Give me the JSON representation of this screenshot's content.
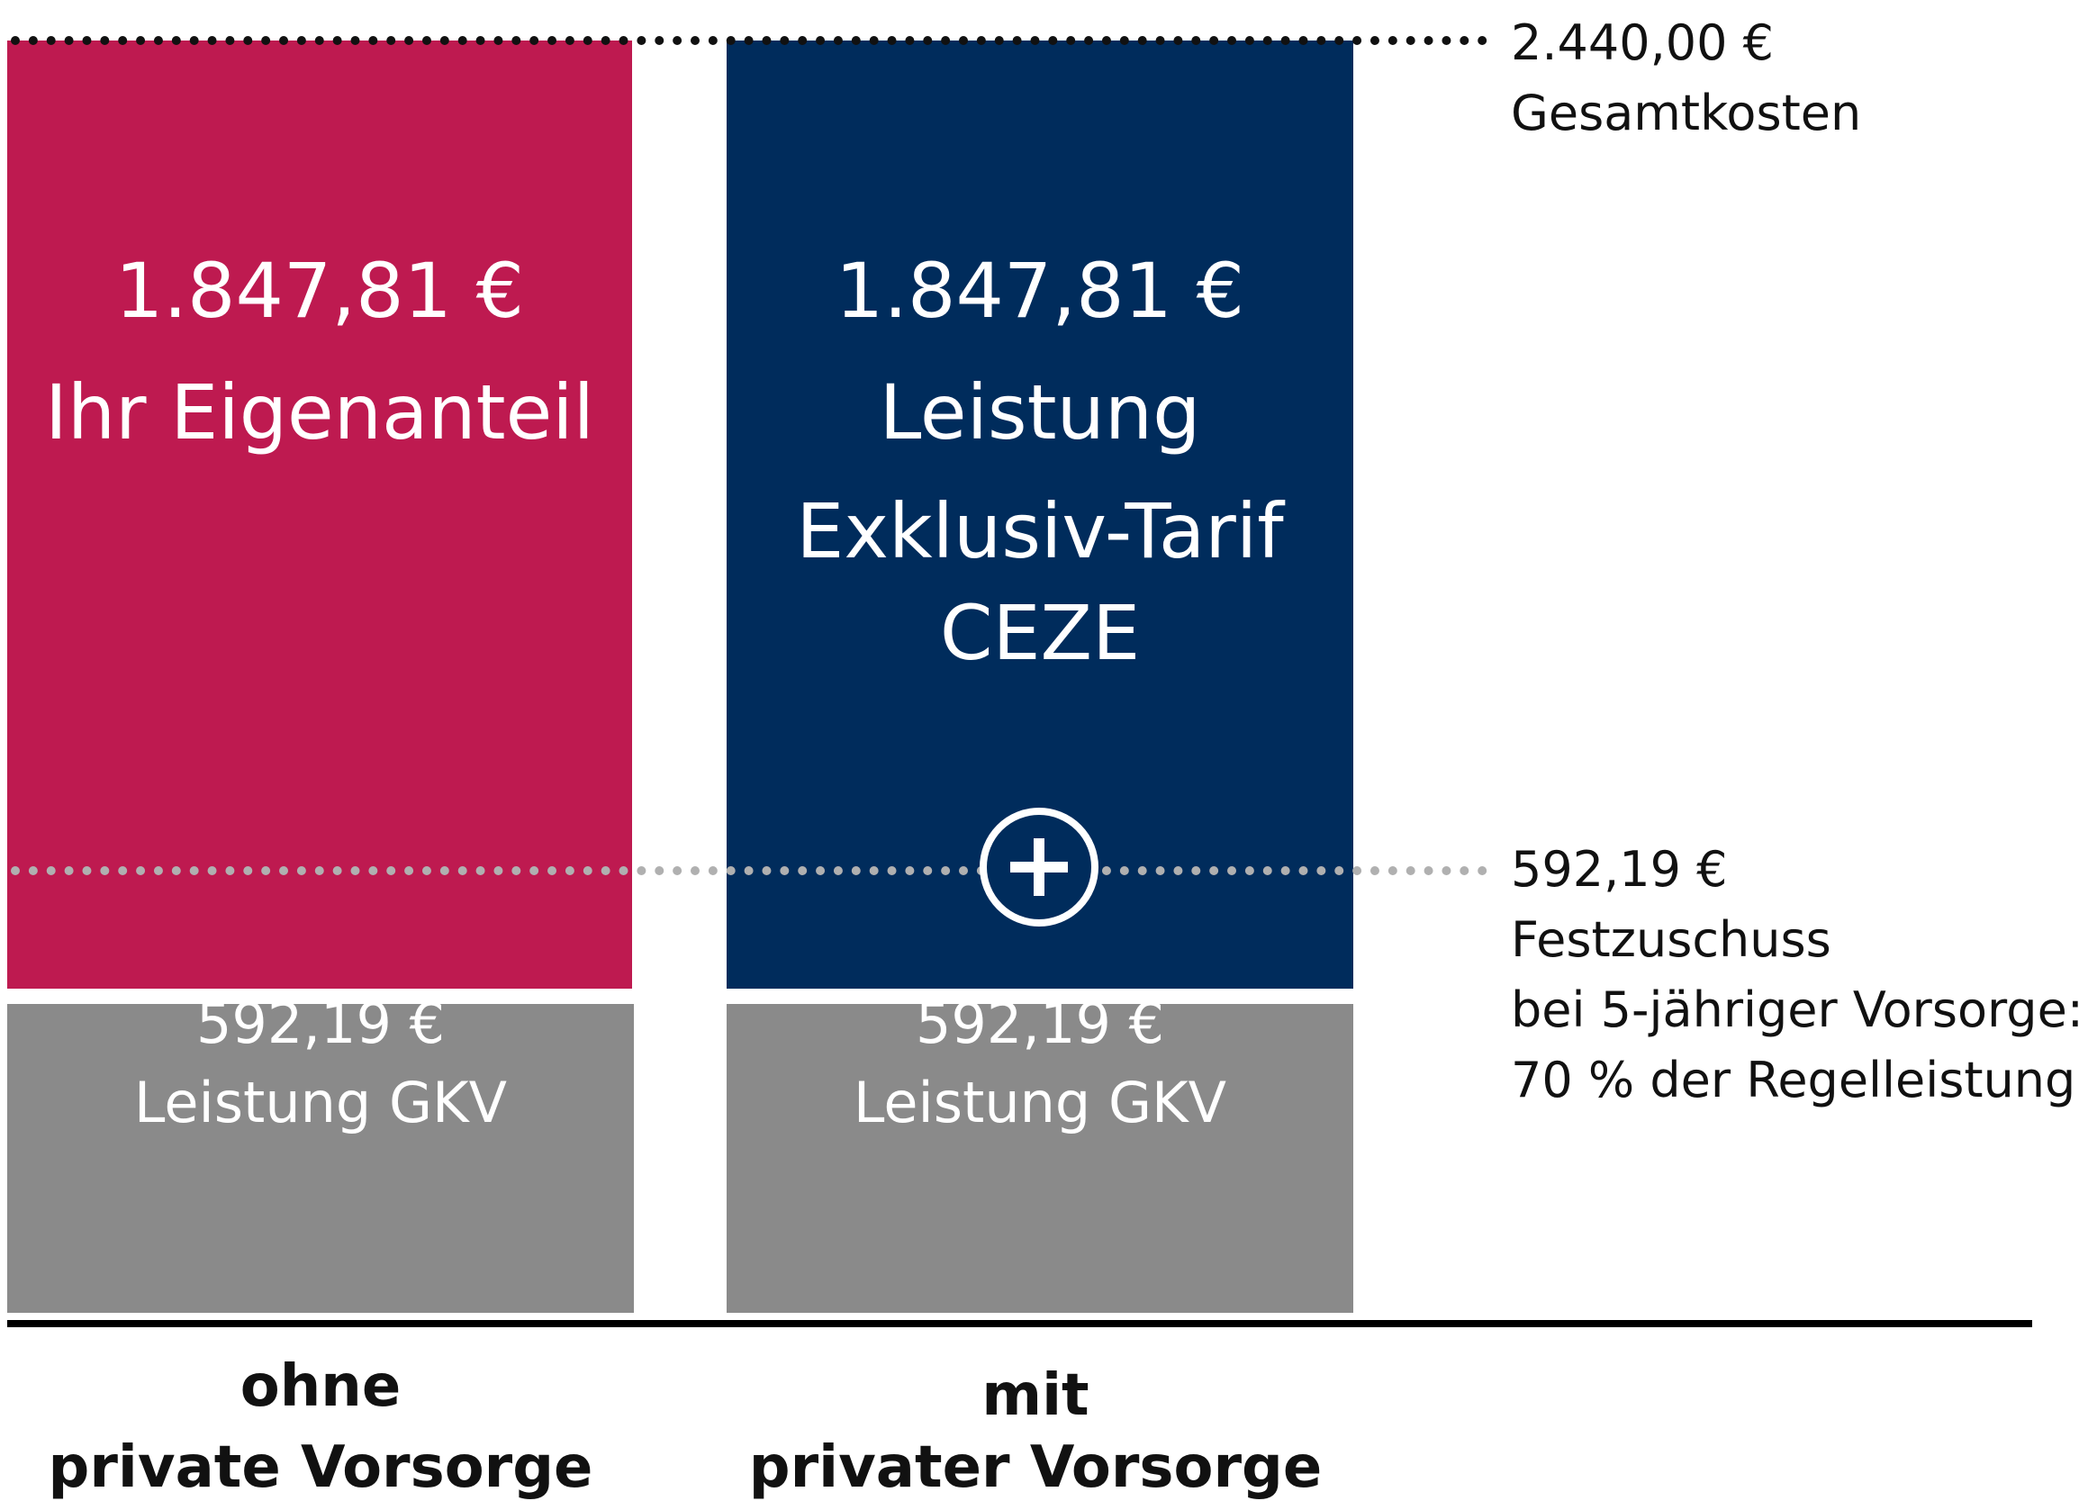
{
  "chart_data": {
    "type": "bar",
    "stacked": true,
    "categories": [
      "ohne\nprivate Vorsorge",
      "mit\nprivater Vorsorge"
    ],
    "category_lines": [
      [
        "ohne",
        "private Vorsorge"
      ],
      [
        "mit",
        "privater Vorsorge"
      ]
    ],
    "series": [
      {
        "values": [
          592.19,
          592.19
        ],
        "labels": [
          [
            "592,19 €",
            "Leistung GKV"
          ],
          [
            "592,19 €",
            "Leistung GKV"
          ]
        ],
        "colors": [
          "#8a8a8a",
          "#8a8a8a"
        ]
      },
      {
        "values": [
          1847.81,
          1847.81
        ],
        "labels": [
          [
            "1.847,81 €",
            "Ihr Eigenanteil"
          ],
          [
            "1.847,81 €",
            "Leistung",
            "Exklusiv-Tarif",
            "CEZE"
          ]
        ],
        "colors": [
          "#be1a50",
          "#002c5c"
        ]
      }
    ],
    "ylim": [
      0,
      2440
    ],
    "grid": false,
    "reference_lines": [
      {
        "value": 2440,
        "lines": [
          "2.440,00 €",
          "Gesamtkosten"
        ],
        "color": "#111111"
      },
      {
        "value": 592.19,
        "lines": [
          "592,19 €",
          "Festzuschuss",
          "bei 5-jähriger Vorsorge:",
          "70 % der Regelleistung"
        ],
        "color": "#b0b0b0"
      }
    ],
    "icons": {
      "plus": "plus-circle-icon"
    }
  }
}
